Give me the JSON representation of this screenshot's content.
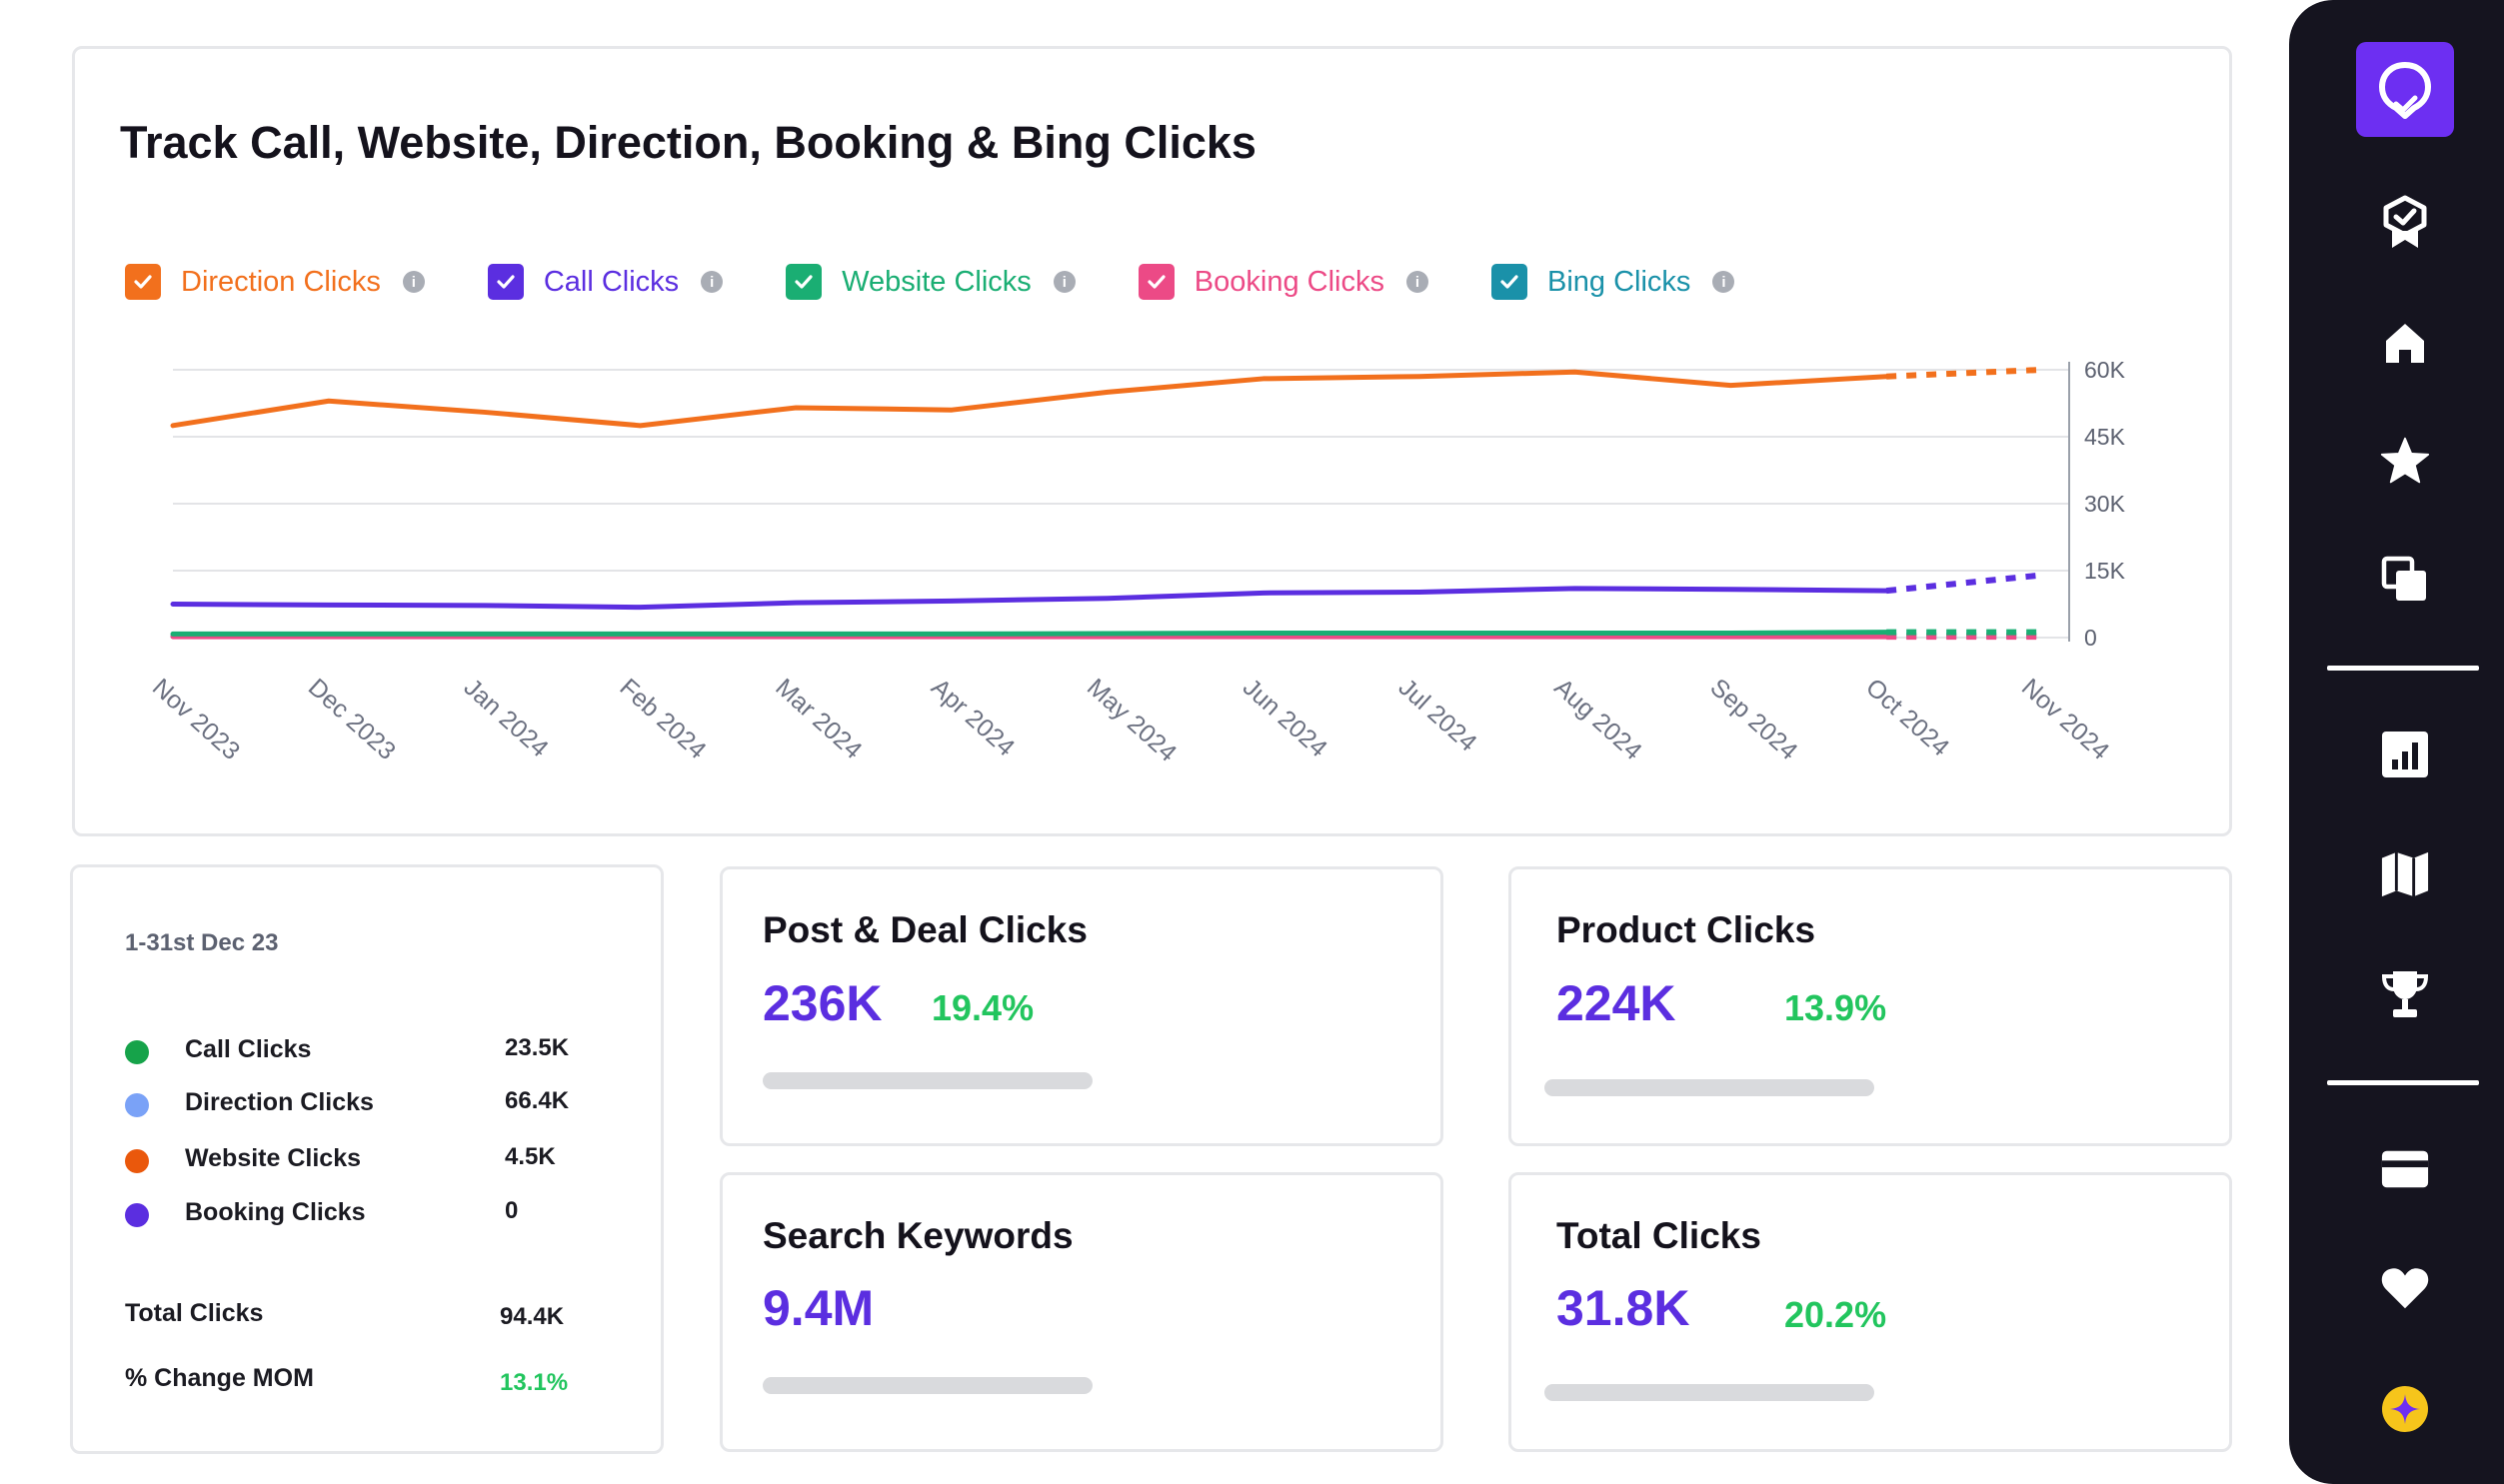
{
  "chart_card": {
    "title": "Track Call, Website, Direction, Booking & Bing Clicks",
    "legend": [
      {
        "label": "Direction Clicks",
        "color": "#f2701d",
        "icon": "info-icon"
      },
      {
        "label": "Call Clicks",
        "color": "#5b2ee0",
        "icon": "info-icon"
      },
      {
        "label": "Website Clicks",
        "color": "#1aae73",
        "icon": "info-icon"
      },
      {
        "label": "Booking Clicks",
        "color": "#ec4a86",
        "icon": "info-icon"
      },
      {
        "label": "Bing Clicks",
        "color": "#1a91a9",
        "icon": "info-icon"
      }
    ]
  },
  "chart_data": {
    "type": "line",
    "title": "Track Call, Website, Direction, Booking & Bing Clicks",
    "categories": [
      "Nov 2023",
      "Dec 2023",
      "Jan 2024",
      "Feb 2024",
      "Mar 2024",
      "Apr 2024",
      "May 2024",
      "Jun 2024",
      "Jul 2024",
      "Aug 2024",
      "Sep 2024",
      "Oct 2024",
      "Nov 2024"
    ],
    "ylim": [
      0,
      60000
    ],
    "yticks": [
      0,
      15000,
      30000,
      45000,
      60000
    ],
    "ytick_labels": [
      "0",
      "15K",
      "30K",
      "45K",
      "60K"
    ],
    "forecast_from_index": 11,
    "grid": true,
    "series": [
      {
        "name": "Direction Clicks",
        "color": "#f2701d",
        "values": [
          47500,
          53000,
          50500,
          47500,
          51500,
          51000,
          55000,
          58000,
          58500,
          59500,
          56500,
          58500,
          60000
        ]
      },
      {
        "name": "Call Clicks",
        "color": "#5b2ee0",
        "values": [
          7500,
          7300,
          7200,
          6800,
          7800,
          8200,
          8800,
          10000,
          10200,
          11000,
          10800,
          10500,
          14000
        ]
      },
      {
        "name": "Website Clicks",
        "color": "#1aae73",
        "values": [
          800,
          800,
          800,
          800,
          800,
          800,
          900,
          1000,
          1000,
          1000,
          1000,
          1200,
          1200
        ]
      },
      {
        "name": "Booking Clicks",
        "color": "#ec4a86",
        "values": [
          200,
          200,
          200,
          200,
          200,
          200,
          200,
          200,
          200,
          200,
          200,
          200,
          200
        ]
      },
      {
        "name": "Bing Clicks",
        "color": "#1a91a9",
        "values": [
          300,
          300,
          300,
          300,
          300,
          300,
          400,
          400,
          400,
          400,
          400,
          400,
          400
        ]
      }
    ]
  },
  "summary": {
    "date_range": "1-31st Dec 23",
    "rows": [
      {
        "label": "Call Clicks",
        "value": "23.5K",
        "color": "#16a34a"
      },
      {
        "label": "Direction Clicks",
        "value": "66.4K",
        "color": "#7aa2f7"
      },
      {
        "label": "Website Clicks",
        "value": "4.5K",
        "color": "#ea580c"
      },
      {
        "label": "Booking Clicks",
        "value": "0",
        "color": "#5b2ee0"
      }
    ],
    "total_label": "Total Clicks",
    "total_value": "94.4K",
    "mom_label": "% Change MOM",
    "mom_value": "13.1%"
  },
  "metrics": {
    "post_deal": {
      "title": "Post & Deal Clicks",
      "value": "236K",
      "change": "19.4%"
    },
    "product": {
      "title": "Product Clicks",
      "value": "224K",
      "change": "13.9%"
    },
    "search_keywords": {
      "title": "Search Keywords",
      "value": "9.4M"
    },
    "total_clicks": {
      "title": "Total Clicks",
      "value": "31.8K",
      "change": "20.2%"
    }
  },
  "sidebar": {
    "items": [
      "location-pin-logo-icon",
      "badge-check-icon",
      "home-icon",
      "star-icon",
      "copy-icon",
      "bar-chart-icon",
      "map-icon",
      "trophy-icon",
      "credit-card-icon",
      "heart-icon",
      "sparkle-icon"
    ],
    "logo_color": "#6d2ff2",
    "background": "#15141f"
  }
}
